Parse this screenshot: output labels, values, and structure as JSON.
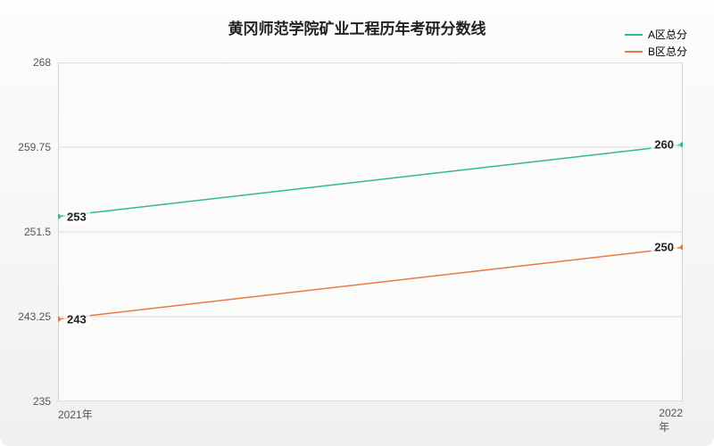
{
  "chart": {
    "type": "line",
    "title": "黄冈师范学院矿业工程历年考研分数线",
    "title_fontsize": 17,
    "title_color": "#222222",
    "background_gradient": [
      "#fdfdfd",
      "#f0f0ee"
    ],
    "plot_background": "#fbfbf9",
    "plot_border_color": "#c8c8c8",
    "grid_color": "#dcdcdc",
    "x_categories": [
      "2021年",
      "2022年"
    ],
    "ylim": [
      235,
      268
    ],
    "yticks": [
      235,
      243.25,
      251.5,
      259.75,
      268
    ],
    "ytick_labels": [
      "235",
      "243.25",
      "251.5",
      "259.75",
      "268"
    ],
    "axis_label_fontsize": 12,
    "axis_label_color": "#555555",
    "series": [
      {
        "name": "A区总分",
        "color": "#2fb89a",
        "line_width": 1.5,
        "data": [
          253,
          260
        ],
        "labels": [
          "253",
          "260"
        ]
      },
      {
        "name": "B区总分",
        "color": "#e87945",
        "line_width": 1.5,
        "data": [
          243,
          250
        ],
        "labels": [
          "243",
          "250"
        ]
      }
    ],
    "legend": {
      "fontsize": 12,
      "text_color": "#333333"
    },
    "data_label_fontsize": 13,
    "data_label_color": "#222222"
  }
}
